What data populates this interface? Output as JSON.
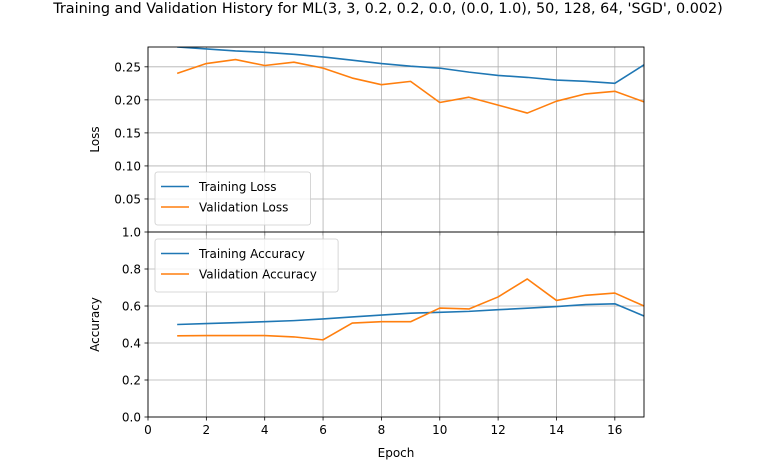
{
  "title": "Training and Validation History for ML(3, 3, 0.2, 0.2, 0.0, (0.0, 1.0), 50, 128, 64, 'SGD', 0.002)",
  "colors": {
    "training": "#1f77b4",
    "validation": "#ff7f0e",
    "grid": "#b0b0b0"
  },
  "chart_data": [
    {
      "type": "line",
      "ylabel": "Loss",
      "xlabel": "",
      "xlim": [
        0,
        17
      ],
      "ylim": [
        0,
        0.28
      ],
      "xticks": [],
      "yticks": [
        "0.05",
        "0.10",
        "0.15",
        "0.20",
        "0.25"
      ],
      "ytick_values": [
        0.05,
        0.1,
        0.15,
        0.2,
        0.25
      ],
      "legend_position": "lower-left",
      "grid": true,
      "x": [
        1,
        2,
        3,
        4,
        5,
        6,
        7,
        8,
        9,
        10,
        11,
        12,
        13,
        14,
        15,
        16,
        17
      ],
      "series": [
        {
          "name": "Training Loss",
          "color": "#1f77b4",
          "values": [
            0.28,
            0.277,
            0.274,
            0.272,
            0.269,
            0.265,
            0.26,
            0.255,
            0.251,
            0.248,
            0.242,
            0.237,
            0.234,
            0.23,
            0.228,
            0.225,
            0.253
          ]
        },
        {
          "name": "Validation Loss",
          "color": "#ff7f0e",
          "values": [
            0.24,
            0.255,
            0.261,
            0.252,
            0.257,
            0.248,
            0.233,
            0.223,
            0.228,
            0.196,
            0.204,
            0.192,
            0.18,
            0.198,
            0.209,
            0.213,
            0.197
          ]
        }
      ]
    },
    {
      "type": "line",
      "ylabel": "Accuracy",
      "xlabel": "Epoch",
      "xlim": [
        0,
        17
      ],
      "ylim": [
        0,
        1.0
      ],
      "xticks": [
        "0",
        "2",
        "4",
        "6",
        "8",
        "10",
        "12",
        "14",
        "16"
      ],
      "xtick_values": [
        0,
        2,
        4,
        6,
        8,
        10,
        12,
        14,
        16
      ],
      "yticks": [
        "0.0",
        "0.2",
        "0.4",
        "0.6",
        "0.8",
        "1.0"
      ],
      "ytick_values": [
        0.0,
        0.2,
        0.4,
        0.6,
        0.8,
        1.0
      ],
      "legend_position": "upper-left",
      "grid": true,
      "x": [
        1,
        2,
        3,
        4,
        5,
        6,
        7,
        8,
        9,
        10,
        11,
        12,
        13,
        14,
        15,
        16,
        17
      ],
      "series": [
        {
          "name": "Training Accuracy",
          "color": "#1f77b4",
          "values": [
            0.5,
            0.505,
            0.51,
            0.515,
            0.521,
            0.53,
            0.541,
            0.551,
            0.561,
            0.566,
            0.571,
            0.58,
            0.588,
            0.597,
            0.608,
            0.612,
            0.546
          ]
        },
        {
          "name": "Validation Accuracy",
          "color": "#ff7f0e",
          "values": [
            0.439,
            0.44,
            0.44,
            0.44,
            0.433,
            0.417,
            0.508,
            0.515,
            0.515,
            0.589,
            0.584,
            0.649,
            0.746,
            0.63,
            0.658,
            0.67,
            0.6
          ]
        }
      ]
    }
  ]
}
